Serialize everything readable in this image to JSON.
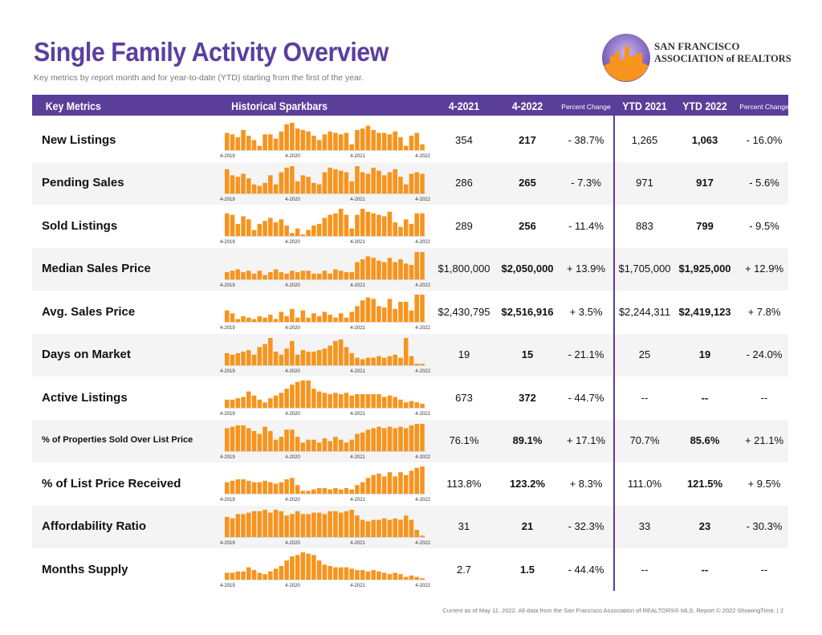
{
  "header": {
    "title": "Single Family Activity Overview",
    "subtitle": "Key metrics by report month and for year-to-date (YTD) starting from the first of the year.",
    "logo": [
      "SAN FRANCISCO",
      "ASSOCIATION of REALTORS"
    ]
  },
  "table": {
    "columns": [
      "Key Metrics",
      "Historical Sparkbars",
      "4-2021",
      "4-2022",
      "Percent Change",
      "YTD 2021",
      "YTD 2022",
      "Percent Change"
    ],
    "spark_labels": [
      "4-2019",
      "4-2020",
      "4-2021",
      "4-2022"
    ],
    "rows": [
      {
        "metric": "New Listings",
        "cells": [
          "354",
          "217",
          "- 38.7%",
          "1,265",
          "1,063",
          "- 16.0%"
        ],
        "spark": [
          60,
          55,
          45,
          70,
          50,
          35,
          15,
          55,
          55,
          40,
          65,
          90,
          95,
          75,
          70,
          65,
          50,
          35,
          55,
          65,
          60,
          55,
          60,
          20,
          70,
          75,
          85,
          70,
          60,
          60,
          55,
          65,
          45,
          15,
          50,
          60,
          20
        ]
      },
      {
        "metric": "Pending Sales",
        "cells": [
          "286",
          "265",
          "- 7.3%",
          "971",
          "917",
          "- 5.6%"
        ],
        "spark": [
          80,
          60,
          55,
          65,
          50,
          30,
          25,
          35,
          60,
          30,
          70,
          85,
          90,
          40,
          60,
          55,
          35,
          30,
          70,
          85,
          80,
          75,
          70,
          40,
          90,
          70,
          65,
          85,
          75,
          60,
          70,
          80,
          55,
          30,
          65,
          70,
          65
        ]
      },
      {
        "metric": "Sold Listings",
        "cells": [
          "289",
          "256",
          "- 11.4%",
          "883",
          "799",
          "- 9.5%"
        ],
        "spark": [
          75,
          70,
          40,
          65,
          55,
          20,
          40,
          50,
          60,
          45,
          55,
          35,
          10,
          25,
          5,
          20,
          35,
          40,
          60,
          70,
          75,
          90,
          70,
          25,
          70,
          90,
          80,
          75,
          70,
          65,
          80,
          45,
          30,
          55,
          40,
          75,
          75
        ]
      },
      {
        "metric": "Median Sales Price",
        "cells": [
          "$1,800,000",
          "$2,050,000",
          "+ 13.9%",
          "$1,705,000",
          "$1,925,000",
          "+ 12.9%"
        ],
        "spark": [
          25,
          30,
          35,
          25,
          30,
          20,
          30,
          15,
          25,
          35,
          25,
          20,
          30,
          25,
          30,
          30,
          20,
          20,
          30,
          20,
          35,
          30,
          25,
          25,
          60,
          70,
          80,
          75,
          65,
          60,
          75,
          60,
          70,
          55,
          50,
          95,
          95
        ]
      },
      {
        "metric": "Avg. Sales Price",
        "cells": [
          "$2,430,795",
          "$2,516,916",
          "+ 3.5%",
          "$2,244,311",
          "$2,419,123",
          "+ 7.8%"
        ],
        "spark": [
          40,
          30,
          10,
          20,
          15,
          10,
          20,
          15,
          25,
          10,
          35,
          20,
          45,
          15,
          40,
          15,
          30,
          20,
          35,
          25,
          15,
          30,
          15,
          35,
          55,
          75,
          85,
          80,
          55,
          50,
          80,
          45,
          70,
          70,
          40,
          95,
          95
        ]
      },
      {
        "metric": "Days on Market",
        "cells": [
          "19",
          "15",
          "- 21.1%",
          "25",
          "19",
          "- 24.0%"
        ],
        "spark": [
          40,
          35,
          40,
          45,
          50,
          35,
          60,
          70,
          90,
          45,
          35,
          55,
          80,
          35,
          50,
          45,
          45,
          50,
          55,
          65,
          80,
          85,
          60,
          40,
          25,
          20,
          25,
          25,
          30,
          25,
          30,
          35,
          25,
          90,
          30,
          5,
          5
        ]
      },
      {
        "metric": "Active Listings",
        "cells": [
          "673",
          "372",
          "- 44.7%",
          "--",
          "--",
          "--"
        ],
        "spark": [
          30,
          30,
          35,
          40,
          60,
          45,
          30,
          20,
          35,
          45,
          55,
          70,
          85,
          95,
          100,
          100,
          70,
          60,
          55,
          50,
          55,
          50,
          55,
          45,
          50,
          50,
          50,
          50,
          50,
          40,
          45,
          40,
          30,
          20,
          25,
          20,
          15
        ]
      },
      {
        "metric": "% of Properties Sold Over List Price",
        "cells": [
          "76.1%",
          "89.1%",
          "+ 17.1%",
          "70.7%",
          "85.6%",
          "+ 21.1%"
        ],
        "spark": [
          80,
          85,
          90,
          90,
          80,
          70,
          60,
          85,
          70,
          40,
          50,
          75,
          75,
          50,
          30,
          40,
          40,
          30,
          45,
          35,
          50,
          40,
          30,
          40,
          60,
          65,
          75,
          80,
          85,
          80,
          85,
          80,
          85,
          80,
          90,
          95,
          95
        ]
      },
      {
        "metric": "% of List Price Received",
        "cells": [
          "113.8%",
          "123.2%",
          "+ 8.3%",
          "111.0%",
          "121.5%",
          "+ 9.5%"
        ],
        "spark": [
          40,
          45,
          50,
          50,
          45,
          40,
          40,
          45,
          40,
          35,
          40,
          50,
          55,
          30,
          10,
          10,
          15,
          20,
          20,
          15,
          20,
          15,
          20,
          15,
          30,
          40,
          55,
          65,
          70,
          60,
          75,
          60,
          75,
          65,
          80,
          90,
          95
        ]
      },
      {
        "metric": "Affordability Ratio",
        "cells": [
          "31",
          "21",
          "- 32.3%",
          "33",
          "23",
          "- 30.3%"
        ],
        "spark": [
          70,
          65,
          80,
          80,
          85,
          90,
          90,
          95,
          85,
          95,
          90,
          75,
          80,
          90,
          80,
          80,
          85,
          85,
          80,
          90,
          90,
          85,
          90,
          95,
          75,
          60,
          55,
          60,
          60,
          65,
          60,
          65,
          60,
          75,
          60,
          25,
          5
        ]
      },
      {
        "metric": "Months Supply",
        "cells": [
          "2.7",
          "1.5",
          "- 44.4%",
          "--",
          "--",
          "--"
        ],
        "spark": [
          25,
          25,
          30,
          30,
          45,
          35,
          25,
          20,
          30,
          40,
          50,
          70,
          85,
          90,
          100,
          95,
          90,
          70,
          55,
          50,
          45,
          45,
          45,
          40,
          35,
          35,
          30,
          35,
          30,
          25,
          20,
          25,
          20,
          10,
          15,
          10,
          5
        ]
      }
    ]
  },
  "footer": "Current as of May 11, 2022.  All data from the San Francisco Association of REALTORS® MLS. Report © 2022 ShowingTime.  |  2"
}
